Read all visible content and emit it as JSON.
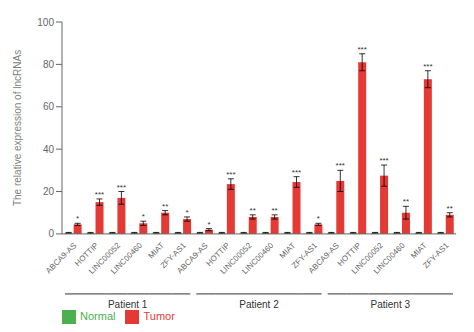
{
  "chart_data": {
    "type": "bar",
    "ylabel": "The relative expression of lncRNAs",
    "categories": [
      "ABCA9-AS",
      "HOTTIP",
      "LINC00052",
      "LINC00460",
      "MIAT",
      "ZFY-AS1",
      "ABCA9-AS",
      "HOTTIP",
      "LINC00052",
      "LINC00460",
      "MIAT",
      "ZFY-AS1",
      "ABCA9-AS",
      "HOTTIP",
      "LINC00052",
      "LINC00460",
      "MIAT",
      "ZFY-AS1"
    ],
    "groups": [
      "Patient 1",
      "Patient 2",
      "Patient 3"
    ],
    "series": [
      {
        "name": "Normal",
        "color": "#4caf50",
        "values": [
          0.5,
          0.5,
          0.5,
          0.5,
          0.5,
          0.5,
          0.5,
          0.5,
          0.5,
          0.5,
          0.5,
          0.5,
          0.5,
          0.5,
          0.5,
          0.5,
          0.5,
          0.5
        ],
        "errors": [
          0.2,
          0.2,
          0.2,
          0.2,
          0.2,
          0.2,
          0.2,
          0.2,
          0.2,
          0.2,
          0.2,
          0.2,
          0.2,
          0.2,
          0.2,
          0.2,
          0.2,
          0.2
        ]
      },
      {
        "name": "Tumor",
        "color": "#e53935",
        "values": [
          4.5,
          15.0,
          17.0,
          5.0,
          10.0,
          7.0,
          2.0,
          23.5,
          8.0,
          8.0,
          24.5,
          4.5,
          25.0,
          81.0,
          27.5,
          10.0,
          73.0,
          9.0
        ],
        "errors": [
          0.5,
          1.5,
          3.0,
          1.0,
          1.0,
          1.0,
          0.5,
          2.5,
          1.0,
          1.0,
          2.5,
          0.5,
          5.0,
          4.0,
          5.0,
          3.0,
          4.0,
          1.0
        ],
        "annotations": [
          "*",
          "***",
          "***",
          "*",
          "**",
          "*",
          "*",
          "***",
          "**",
          "**",
          "***",
          "*",
          "***",
          "***",
          "***",
          "**",
          "***",
          "**"
        ]
      }
    ],
    "ylim": [
      0,
      100
    ],
    "yticks": [
      0,
      20,
      40,
      60,
      80,
      100
    ],
    "grid": false,
    "legend": "lower left"
  }
}
